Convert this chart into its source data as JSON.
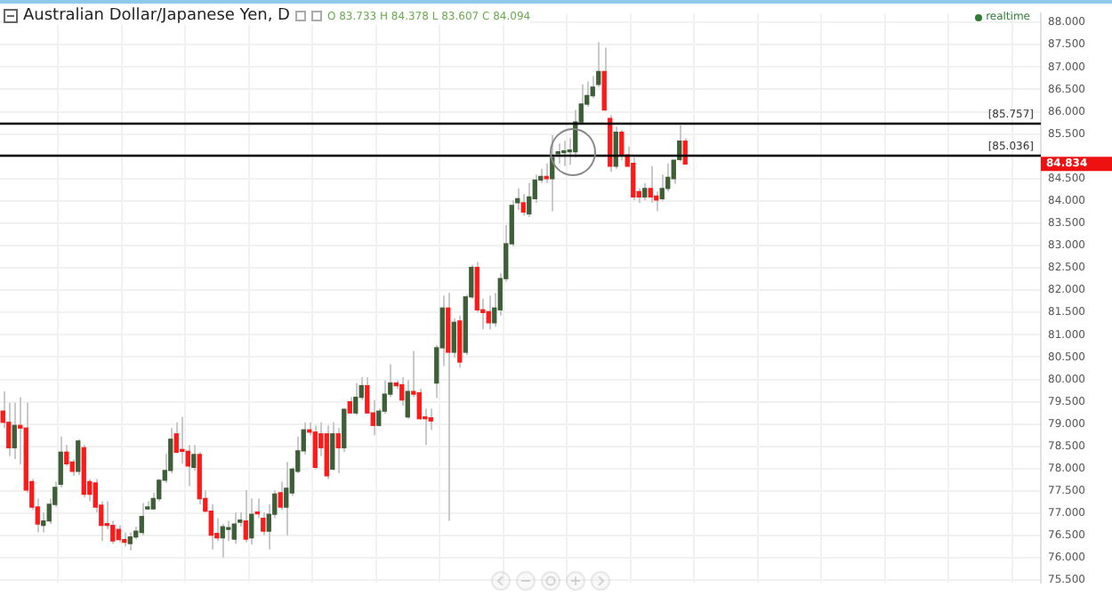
{
  "chart_data": {
    "type": "candlestick",
    "title": "Australian Dollar/Japanese Yen, D",
    "annotations": [
      "O 83.733 H 84.378 L 83.607 C 84.094",
      "realtime",
      "84.834"
    ],
    "categories": [
      null,
      null,
      null,
      null,
      null,
      null,
      null,
      null,
      null,
      null,
      null,
      null,
      null,
      null,
      null,
      null,
      null,
      null,
      null,
      null,
      null,
      null,
      null,
      null,
      null,
      null,
      null,
      null,
      null,
      null,
      null,
      null,
      null,
      null,
      null,
      null,
      null,
      null,
      null,
      null,
      null,
      null,
      null,
      null,
      null,
      null,
      null,
      null,
      null,
      null,
      null,
      null,
      null,
      null,
      null,
      null,
      null,
      null,
      null,
      null,
      null,
      null,
      null,
      null,
      null,
      null,
      null,
      null,
      null,
      null,
      null,
      null,
      null,
      null,
      null,
      null,
      null,
      null,
      null,
      null,
      null,
      null,
      null,
      null,
      null,
      null,
      null,
      null,
      null,
      null,
      null,
      null,
      null,
      null,
      null,
      null,
      null,
      null,
      null,
      null,
      null,
      null,
      null,
      null,
      null,
      null,
      null,
      null,
      null,
      null,
      null,
      null,
      null,
      null,
      null,
      null,
      null,
      null,
      null,
      null,
      null,
      null,
      null,
      null,
      null,
      null,
      null,
      null,
      null,
      null,
      null,
      null,
      null,
      null,
      null,
      null,
      null,
      null,
      null,
      null,
      null,
      null,
      null,
      null,
      null,
      null,
      null,
      null,
      null,
      null,
      null,
      null,
      null,
      null,
      null,
      null,
      null,
      null,
      null,
      null,
      null,
      null,
      null,
      null,
      null,
      null,
      null,
      null,
      null,
      null,
      null,
      null,
      null,
      null,
      null,
      null,
      null,
      null,
      null,
      null
    ],
    "ohlc": [
      [
        79.29,
        79.73,
        78.91,
        79.04
      ],
      [
        79.04,
        79.48,
        78.28,
        78.47
      ],
      [
        78.47,
        79.48,
        78.21,
        78.97
      ],
      [
        78.97,
        79.6,
        78.09,
        78.91
      ],
      [
        78.91,
        79.48,
        77.46,
        77.52
      ],
      [
        77.71,
        77.77,
        77.08,
        77.14
      ],
      [
        77.14,
        77.33,
        76.57,
        76.76
      ],
      [
        76.73,
        77.02,
        76.57,
        76.83
      ],
      [
        76.83,
        77.33,
        76.76,
        77.2
      ],
      [
        77.2,
        77.71,
        77.14,
        77.58
      ],
      [
        77.65,
        78.72,
        77.58,
        78.37
      ],
      [
        78.37,
        78.53,
        78.06,
        78.11
      ],
      [
        78.15,
        78.21,
        77.84,
        77.94
      ],
      [
        77.94,
        78.66,
        77.86,
        78.62
      ],
      [
        78.47,
        78.53,
        77.36,
        77.43
      ],
      [
        77.71,
        77.77,
        77.27,
        77.43
      ],
      [
        77.68,
        77.77,
        77.02,
        77.14
      ],
      [
        77.18,
        77.27,
        76.38,
        76.73
      ],
      [
        76.75,
        77.27,
        76.64,
        76.73
      ],
      [
        76.73,
        76.83,
        76.32,
        76.38
      ],
      [
        76.64,
        76.73,
        76.35,
        76.41
      ],
      [
        76.41,
        76.57,
        76.26,
        76.35
      ],
      [
        76.32,
        76.57,
        76.17,
        76.47
      ],
      [
        76.47,
        76.7,
        76.42,
        76.6
      ],
      [
        76.57,
        77.23,
        76.51,
        76.93
      ],
      [
        77.1,
        77.27,
        77.08,
        77.14
      ],
      [
        77.1,
        77.46,
        77.08,
        77.33
      ],
      [
        77.33,
        77.77,
        77.27,
        77.74
      ],
      [
        77.74,
        78.34,
        77.68,
        77.96
      ],
      [
        77.96,
        78.91,
        77.9,
        78.66
      ],
      [
        78.78,
        79.04,
        78.34,
        78.37
      ],
      [
        78.42,
        79.16,
        78.11,
        78.39
      ],
      [
        78.39,
        78.53,
        77.61,
        78.06
      ],
      [
        78.03,
        78.53,
        77.96,
        78.32
      ],
      [
        78.32,
        78.37,
        77.2,
        77.33
      ],
      [
        77.33,
        77.52,
        77.02,
        77.05
      ],
      [
        77.05,
        77.2,
        76.19,
        76.51
      ],
      [
        76.55,
        76.89,
        76.38,
        76.45
      ],
      [
        76.45,
        76.76,
        76.01,
        76.7
      ],
      [
        76.64,
        76.83,
        76.38,
        76.67
      ],
      [
        76.42,
        77.02,
        76.32,
        76.76
      ],
      [
        76.8,
        77.02,
        76.7,
        76.85
      ],
      [
        76.83,
        77.52,
        76.35,
        76.42
      ],
      [
        76.45,
        77.33,
        76.3,
        76.98
      ],
      [
        77.02,
        77.33,
        76.89,
        76.99
      ],
      [
        76.89,
        77.02,
        76.51,
        76.6
      ],
      [
        76.6,
        77.2,
        76.19,
        76.98
      ],
      [
        76.98,
        77.52,
        76.89,
        77.43
      ],
      [
        77.46,
        77.71,
        77.08,
        77.14
      ],
      [
        77.14,
        78.15,
        76.51,
        77.56
      ],
      [
        77.46,
        78.03,
        77.39,
        77.99
      ],
      [
        77.94,
        78.72,
        77.9,
        78.4
      ],
      [
        78.4,
        79.04,
        78.32,
        78.87
      ],
      [
        78.87,
        79.04,
        78.75,
        78.82
      ],
      [
        78.82,
        78.97,
        77.99,
        78.03
      ],
      [
        78.78,
        79.04,
        78.28,
        78.47
      ],
      [
        78.78,
        78.97,
        77.77,
        77.84
      ],
      [
        77.99,
        79.04,
        77.96,
        78.78
      ],
      [
        78.78,
        78.91,
        77.9,
        78.47
      ],
      [
        78.47,
        79.35,
        78.37,
        79.33
      ],
      [
        79.5,
        79.6,
        79.23,
        79.25
      ],
      [
        79.25,
        79.92,
        79.2,
        79.6
      ],
      [
        79.6,
        80.05,
        79.54,
        79.86
      ],
      [
        79.86,
        80.05,
        79.23,
        79.25
      ],
      [
        79.25,
        79.54,
        78.75,
        78.97
      ],
      [
        78.97,
        79.35,
        78.95,
        79.29
      ],
      [
        79.29,
        79.98,
        79.23,
        79.67
      ],
      [
        79.67,
        80.34,
        79.6,
        79.92
      ],
      [
        79.92,
        79.98,
        79.79,
        79.86
      ],
      [
        79.88,
        80.05,
        79.41,
        79.54
      ],
      [
        79.16,
        79.98,
        79.12,
        79.73
      ],
      [
        79.73,
        80.64,
        79.6,
        79.67
      ],
      [
        79.7,
        79.79,
        79.1,
        79.12
      ],
      [
        79.14,
        79.35,
        78.53,
        79.12
      ],
      [
        79.14,
        79.35,
        78.87,
        79.07
      ],
      [
        79.92,
        80.77,
        79.58,
        80.71
      ],
      [
        80.71,
        81.88,
        80.3,
        81.6
      ],
      [
        81.6,
        81.94,
        76.83,
        80.61
      ],
      [
        80.61,
        81.37,
        80.49,
        81.28
      ],
      [
        81.31,
        81.43,
        80.26,
        80.39
      ],
      [
        80.61,
        81.9,
        80.55,
        81.85
      ],
      [
        81.85,
        82.57,
        81.81,
        82.51
      ],
      [
        82.51,
        82.63,
        81.5,
        81.56
      ],
      [
        81.56,
        81.81,
        81.12,
        81.5
      ],
      [
        81.52,
        81.88,
        81.12,
        81.27
      ],
      [
        81.27,
        81.94,
        81.18,
        81.6
      ],
      [
        81.56,
        82.38,
        81.43,
        82.26
      ],
      [
        82.26,
        83.46,
        82.19,
        83.04
      ],
      [
        83.04,
        84.02,
        82.98,
        83.9
      ],
      [
        83.96,
        84.28,
        83.8,
        84.05
      ],
      [
        83.96,
        84.15,
        83.67,
        83.75
      ],
      [
        83.71,
        84.4,
        83.64,
        84.09
      ],
      [
        84.05,
        84.59,
        83.96,
        84.47
      ],
      [
        84.47,
        84.72,
        84.4,
        84.55
      ],
      [
        84.55,
        84.84,
        84.4,
        84.5
      ],
      [
        84.5,
        85.48,
        83.77,
        84.97
      ],
      [
        85.06,
        85.29,
        84.84,
        85.1
      ],
      [
        85.08,
        85.35,
        84.78,
        85.1
      ],
      [
        85.1,
        85.41,
        84.81,
        85.12
      ],
      [
        85.1,
        86.04,
        84.97,
        85.77
      ],
      [
        85.77,
        86.61,
        85.73,
        86.17
      ],
      [
        86.17,
        86.68,
        86.11,
        86.36
      ],
      [
        86.36,
        86.8,
        86.3,
        86.55
      ],
      [
        86.61,
        87.56,
        86.55,
        86.9
      ],
      [
        86.9,
        87.43,
        86.02,
        86.04
      ],
      [
        85.85,
        85.92,
        84.65,
        84.78
      ],
      [
        84.78,
        85.66,
        84.72,
        85.54
      ],
      [
        85.54,
        85.6,
        84.91,
        85.03
      ],
      [
        85.03,
        85.22,
        84.76,
        84.78
      ],
      [
        84.84,
        84.97,
        84.02,
        84.09
      ],
      [
        84.21,
        84.28,
        83.96,
        84.09
      ],
      [
        84.09,
        84.4,
        84.02,
        84.28
      ],
      [
        84.28,
        84.78,
        83.96,
        84.09
      ],
      [
        84.11,
        84.21,
        83.77,
        84.02
      ],
      [
        84.05,
        84.59,
        84.0,
        84.28
      ],
      [
        84.28,
        84.84,
        84.21,
        84.53
      ],
      [
        84.5,
        84.93,
        84.38,
        84.91
      ],
      [
        84.93,
        85.69,
        84.88,
        85.34
      ],
      [
        85.34,
        85.41,
        84.83,
        84.83
      ],
      null,
      null,
      null,
      null,
      null,
      null,
      null,
      null,
      null,
      null,
      null,
      null,
      null,
      null,
      null,
      null,
      null,
      null,
      null,
      null,
      null,
      null,
      null,
      null,
      null,
      null,
      null,
      null,
      null,
      null,
      null,
      null,
      null,
      null,
      null,
      null,
      null,
      null,
      null,
      null,
      null,
      null,
      null,
      null,
      null,
      null,
      null,
      null,
      null,
      null,
      null,
      null,
      null,
      null,
      null,
      null,
      null,
      null,
      null,
      null,
      null
    ],
    "colors": [
      "#ff1a1a",
      "#ff1a1a",
      "#3e5e37",
      "#ff1a1a",
      "#ff1a1a",
      "#ff1a1a",
      "#ff1a1a",
      "#3e5e37",
      "#3e5e37",
      "#3e5e37",
      "#3e5e37",
      "#ff1a1a",
      "#ff1a1a",
      "#3e5e37",
      "#ff1a1a",
      "#ff1a1a",
      "#ff1a1a",
      "#ff1a1a",
      "#ff1a1a",
      "#ff1a1a",
      "#ff1a1a",
      "#ff1a1a",
      "#3e5e37",
      "#3e5e37",
      "#3e5e37",
      "#3e5e37",
      "#3e5e37",
      "#3e5e37",
      "#3e5e37",
      "#3e5e37",
      "#ff1a1a",
      "#ff1a1a",
      "#ff1a1a",
      "#3e5e37",
      "#ff1a1a",
      "#ff1a1a",
      "#ff1a1a",
      "#ff1a1a",
      "#3e5e37",
      "#3e5e37",
      "#3e5e37",
      "#3e5e37",
      "#ff1a1a",
      "#3e5e37",
      "#ff1a1a",
      "#ff1a1a",
      "#3e5e37",
      "#3e5e37",
      "#ff1a1a",
      "#3e5e37",
      "#3e5e37",
      "#3e5e37",
      "#3e5e37",
      "#ff1a1a",
      "#ff1a1a",
      "#ff1a1a",
      "#ff1a1a",
      "#3e5e37",
      "#ff1a1a",
      "#3e5e37",
      "#ff1a1a",
      "#3e5e37",
      "#3e5e37",
      "#ff1a1a",
      "#ff1a1a",
      "#3e5e37",
      "#3e5e37",
      "#3e5e37",
      "#ff1a1a",
      "#ff1a1a",
      "#3e5e37",
      "#ff1a1a",
      "#ff1a1a",
      "#ff1a1a",
      "#ff1a1a",
      "#3e5e37",
      "#3e5e37",
      "#ff1a1a",
      "#3e5e37",
      "#ff1a1a",
      "#3e5e37",
      "#3e5e37",
      "#ff1a1a",
      "#ff1a1a",
      "#ff1a1a",
      "#3e5e37",
      "#3e5e37",
      "#3e5e37",
      "#3e5e37",
      "#3e5e37",
      "#ff1a1a",
      "#3e5e37",
      "#3e5e37",
      "#3e5e37",
      "#ff1a1a",
      "#3e5e37",
      "#3e5e37",
      "#3e5e37",
      "#3e5e37",
      "#3e5e37",
      "#3e5e37",
      "#3e5e37",
      "#3e5e37",
      "#3e5e37",
      "#ff1a1a",
      "#ff1a1a",
      "#3e5e37",
      "#ff1a1a",
      "#ff1a1a",
      "#ff1a1a",
      "#ff1a1a",
      "#3e5e37",
      "#ff1a1a",
      "#ff1a1a",
      "#3e5e37",
      "#3e5e37",
      "#3e5e37",
      "#3e5e37",
      "#ff1a1a",
      null,
      null,
      null,
      null,
      null,
      null,
      null,
      null,
      null,
      null,
      null,
      null,
      null,
      null,
      null,
      null,
      null,
      null,
      null,
      null,
      null,
      null,
      null,
      null,
      null,
      null,
      null,
      null,
      null,
      null,
      null,
      null,
      null,
      null,
      null,
      null,
      null,
      null,
      null,
      null,
      null,
      null,
      null,
      null,
      null,
      null,
      null,
      null,
      null,
      null,
      null,
      null,
      null,
      null,
      null,
      null,
      null,
      null,
      null,
      null,
      null
    ],
    "ylim": [
      75.45,
      88.2
    ],
    "yticks": [
      {
        "value": 75.5,
        "label": "75.500"
      },
      {
        "value": 76,
        "label": "76.000"
      },
      {
        "value": 76.5,
        "label": "76.500"
      },
      {
        "value": 77,
        "label": "77.000"
      },
      {
        "value": 77.5,
        "label": "77.500"
      },
      {
        "value": 78,
        "label": "78.000"
      },
      {
        "value": 78.5,
        "label": "78.500"
      },
      {
        "value": 79,
        "label": "79.000"
      },
      {
        "value": 79.5,
        "label": "79.500"
      },
      {
        "value": 80,
        "label": "80.000"
      },
      {
        "value": 80.5,
        "label": "80.500"
      },
      {
        "value": 81,
        "label": "81.000"
      },
      {
        "value": 81.5,
        "label": "81.500"
      },
      {
        "value": 82,
        "label": "82.000"
      },
      {
        "value": 82.5,
        "label": "82.500"
      },
      {
        "value": 83,
        "label": "83.000"
      },
      {
        "value": 83.5,
        "label": "83.500"
      },
      {
        "value": 84,
        "label": "84.000"
      },
      {
        "value": 84.5,
        "label": "84.500"
      },
      {
        "value": 85,
        "label": null
      },
      {
        "value": 85.5,
        "label": "85.500"
      },
      {
        "value": 86,
        "label": "86.000"
      },
      {
        "value": 86.5,
        "label": "86.500"
      },
      {
        "value": 87,
        "label": "87.000"
      },
      {
        "value": 87.5,
        "label": "87.500"
      },
      {
        "value": 88,
        "label": "88.000"
      }
    ],
    "grid": true,
    "tick_labels": "y",
    "ref_lines": [
      {
        "axis": "y",
        "value": 85.757,
        "label": "[85.757]",
        "color": "#000000"
      },
      {
        "axis": "y",
        "value": 85.036,
        "label": "[85.036]",
        "color": "#000000"
      }
    ]
  }
}
